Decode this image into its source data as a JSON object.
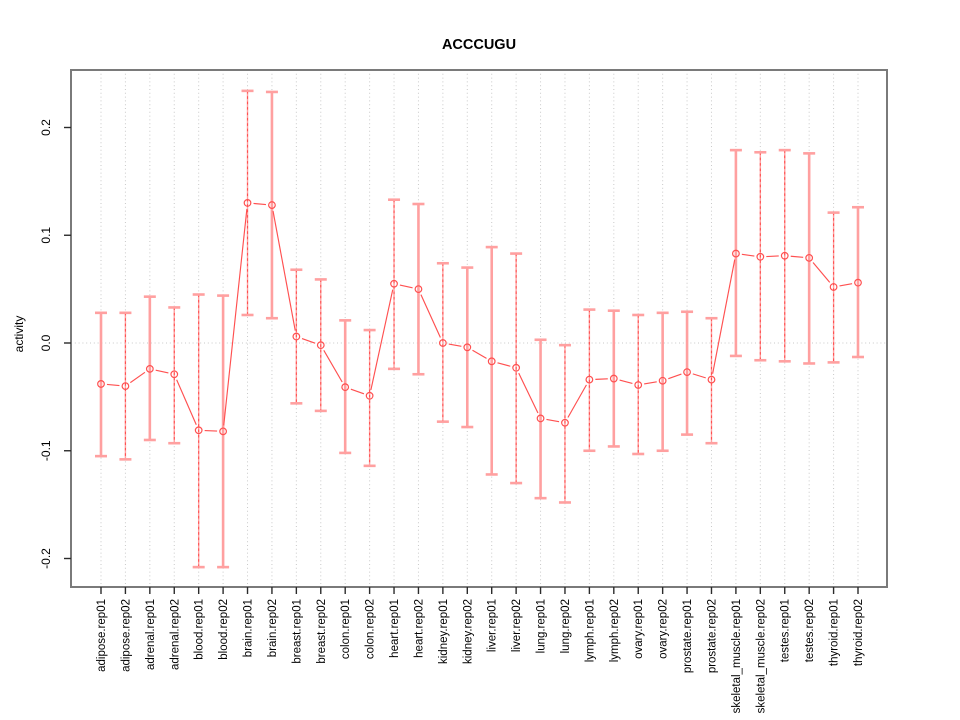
{
  "figure": {
    "background": "#ffffff"
  },
  "chart_data": {
    "type": "line",
    "subtype": "points-with-error-bars",
    "title": "ACCCUGU",
    "xlabel": "",
    "ylabel": "activity",
    "ylim": [
      -0.226,
      0.251
    ],
    "yticks": [
      -0.2,
      -0.1,
      0.0,
      0.1,
      0.2
    ],
    "ytick_labels": [
      "-0.2",
      "-0.1",
      "0.0",
      "0.1",
      "0.2"
    ],
    "grid": "vertical dotted line at each category; dotted horizontal line at 0",
    "legend_position": "none",
    "categories": [
      "adipose.rep01",
      "adipose.rep02",
      "adrenal.rep01",
      "adrenal.rep02",
      "blood.rep01",
      "blood.rep02",
      "brain.rep01",
      "brain.rep02",
      "breast.rep01",
      "breast.rep02",
      "colon.rep01",
      "colon.rep02",
      "heart.rep01",
      "heart.rep02",
      "kidney.rep01",
      "kidney.rep02",
      "liver.rep01",
      "liver.rep02",
      "lung.rep01",
      "lung.rep02",
      "lymph.rep01",
      "lymph.rep02",
      "ovary.rep01",
      "ovary.rep02",
      "prostate.rep01",
      "prostate.rep02",
      "skeletal_muscle.rep01",
      "skeletal_muscle.rep02",
      "testes.rep01",
      "testes.rep02",
      "thyroid.rep01",
      "thyroid.rep02"
    ],
    "series": [
      {
        "name": "activity",
        "values": [
          -0.038,
          -0.04,
          -0.024,
          -0.029,
          -0.081,
          -0.082,
          0.13,
          0.128,
          0.006,
          -0.002,
          -0.041,
          -0.049,
          0.055,
          0.05,
          0.0,
          -0.004,
          -0.017,
          -0.023,
          -0.07,
          -0.074,
          -0.034,
          -0.033,
          -0.039,
          -0.035,
          -0.027,
          -0.034,
          0.083,
          0.08,
          0.081,
          0.079,
          0.052,
          0.056
        ],
        "lower": [
          -0.105,
          -0.108,
          -0.09,
          -0.093,
          -0.208,
          -0.208,
          0.026,
          0.023,
          -0.056,
          -0.063,
          -0.102,
          -0.114,
          -0.024,
          -0.029,
          -0.073,
          -0.078,
          -0.122,
          -0.13,
          -0.144,
          -0.148,
          -0.1,
          -0.096,
          -0.103,
          -0.1,
          -0.085,
          -0.093,
          -0.012,
          -0.016,
          -0.017,
          -0.019,
          -0.018,
          -0.013
        ],
        "upper": [
          0.028,
          0.028,
          0.043,
          0.033,
          0.045,
          0.044,
          0.234,
          0.233,
          0.068,
          0.059,
          0.021,
          0.012,
          0.133,
          0.129,
          0.074,
          0.07,
          0.089,
          0.083,
          0.003,
          -0.002,
          0.031,
          0.03,
          0.026,
          0.028,
          0.029,
          0.023,
          0.179,
          0.177,
          0.179,
          0.176,
          0.121,
          0.126
        ],
        "bar_style": [
          "solid",
          "dashed",
          "solid",
          "dashed",
          "dashed",
          "solid",
          "dashed",
          "solid",
          "dashed",
          "dashed",
          "solid",
          "dashed",
          "dashed",
          "solid",
          "dashed",
          "solid",
          "solid",
          "dashed",
          "solid",
          "dashed",
          "dashed",
          "solid",
          "dashed",
          "solid",
          "solid",
          "dashed",
          "solid",
          "dashed",
          "dashed",
          "solid",
          "dashed",
          "solid"
        ]
      }
    ],
    "colors": {
      "point_stroke": "#ff5050",
      "series_line": "#ff5050",
      "errorbar_pale": "#ffa0a0",
      "errorbar_dashed": "#ff5050",
      "grid_line": "#c9c9c9",
      "frame": "#7a7a7a",
      "axis_tick": "#2b2b2b",
      "text": "#000000"
    }
  }
}
